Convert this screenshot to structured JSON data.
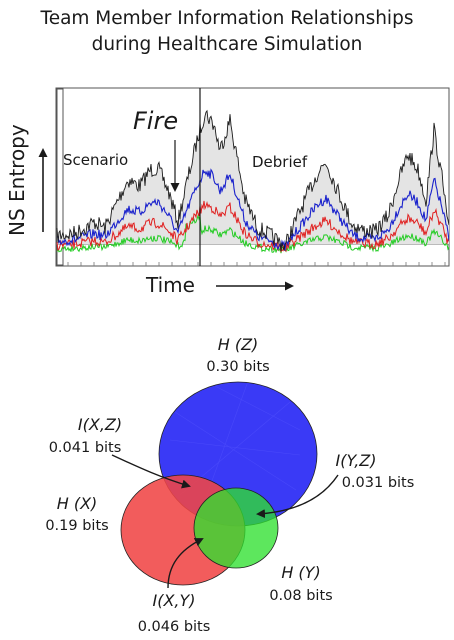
{
  "title": {
    "line1": "Team Member Information Relationships",
    "line2": "during Healthcare Simulation"
  },
  "plot": {
    "ylabel": "NS Entropy",
    "xlabel": "Time",
    "scenario_label": "Scenario",
    "debrief_label": "Debrief",
    "fire_label": "Fire",
    "colors": {
      "total": "#1a1a1a",
      "blue": "#1a22cc",
      "red": "#e02020",
      "green": "#22cc22",
      "fill": "#e4e4e4"
    }
  },
  "venn": {
    "HZ": {
      "label": "H (Z)",
      "value": "0.30 bits",
      "color": "#2b2bf5"
    },
    "HX": {
      "label": "H (X)",
      "value": "0.19 bits",
      "color": "#f04545"
    },
    "HY": {
      "label": "H (Y)",
      "value": "0.08 bits",
      "color": "#2fe02f"
    },
    "IXZ": {
      "label": "I(X,Z)",
      "value": "0.041 bits"
    },
    "IYZ": {
      "label": "I(Y,Z)",
      "value": "0.031 bits"
    },
    "IXY": {
      "label": "I(X,Y)",
      "value": "0.046 bits"
    }
  }
}
